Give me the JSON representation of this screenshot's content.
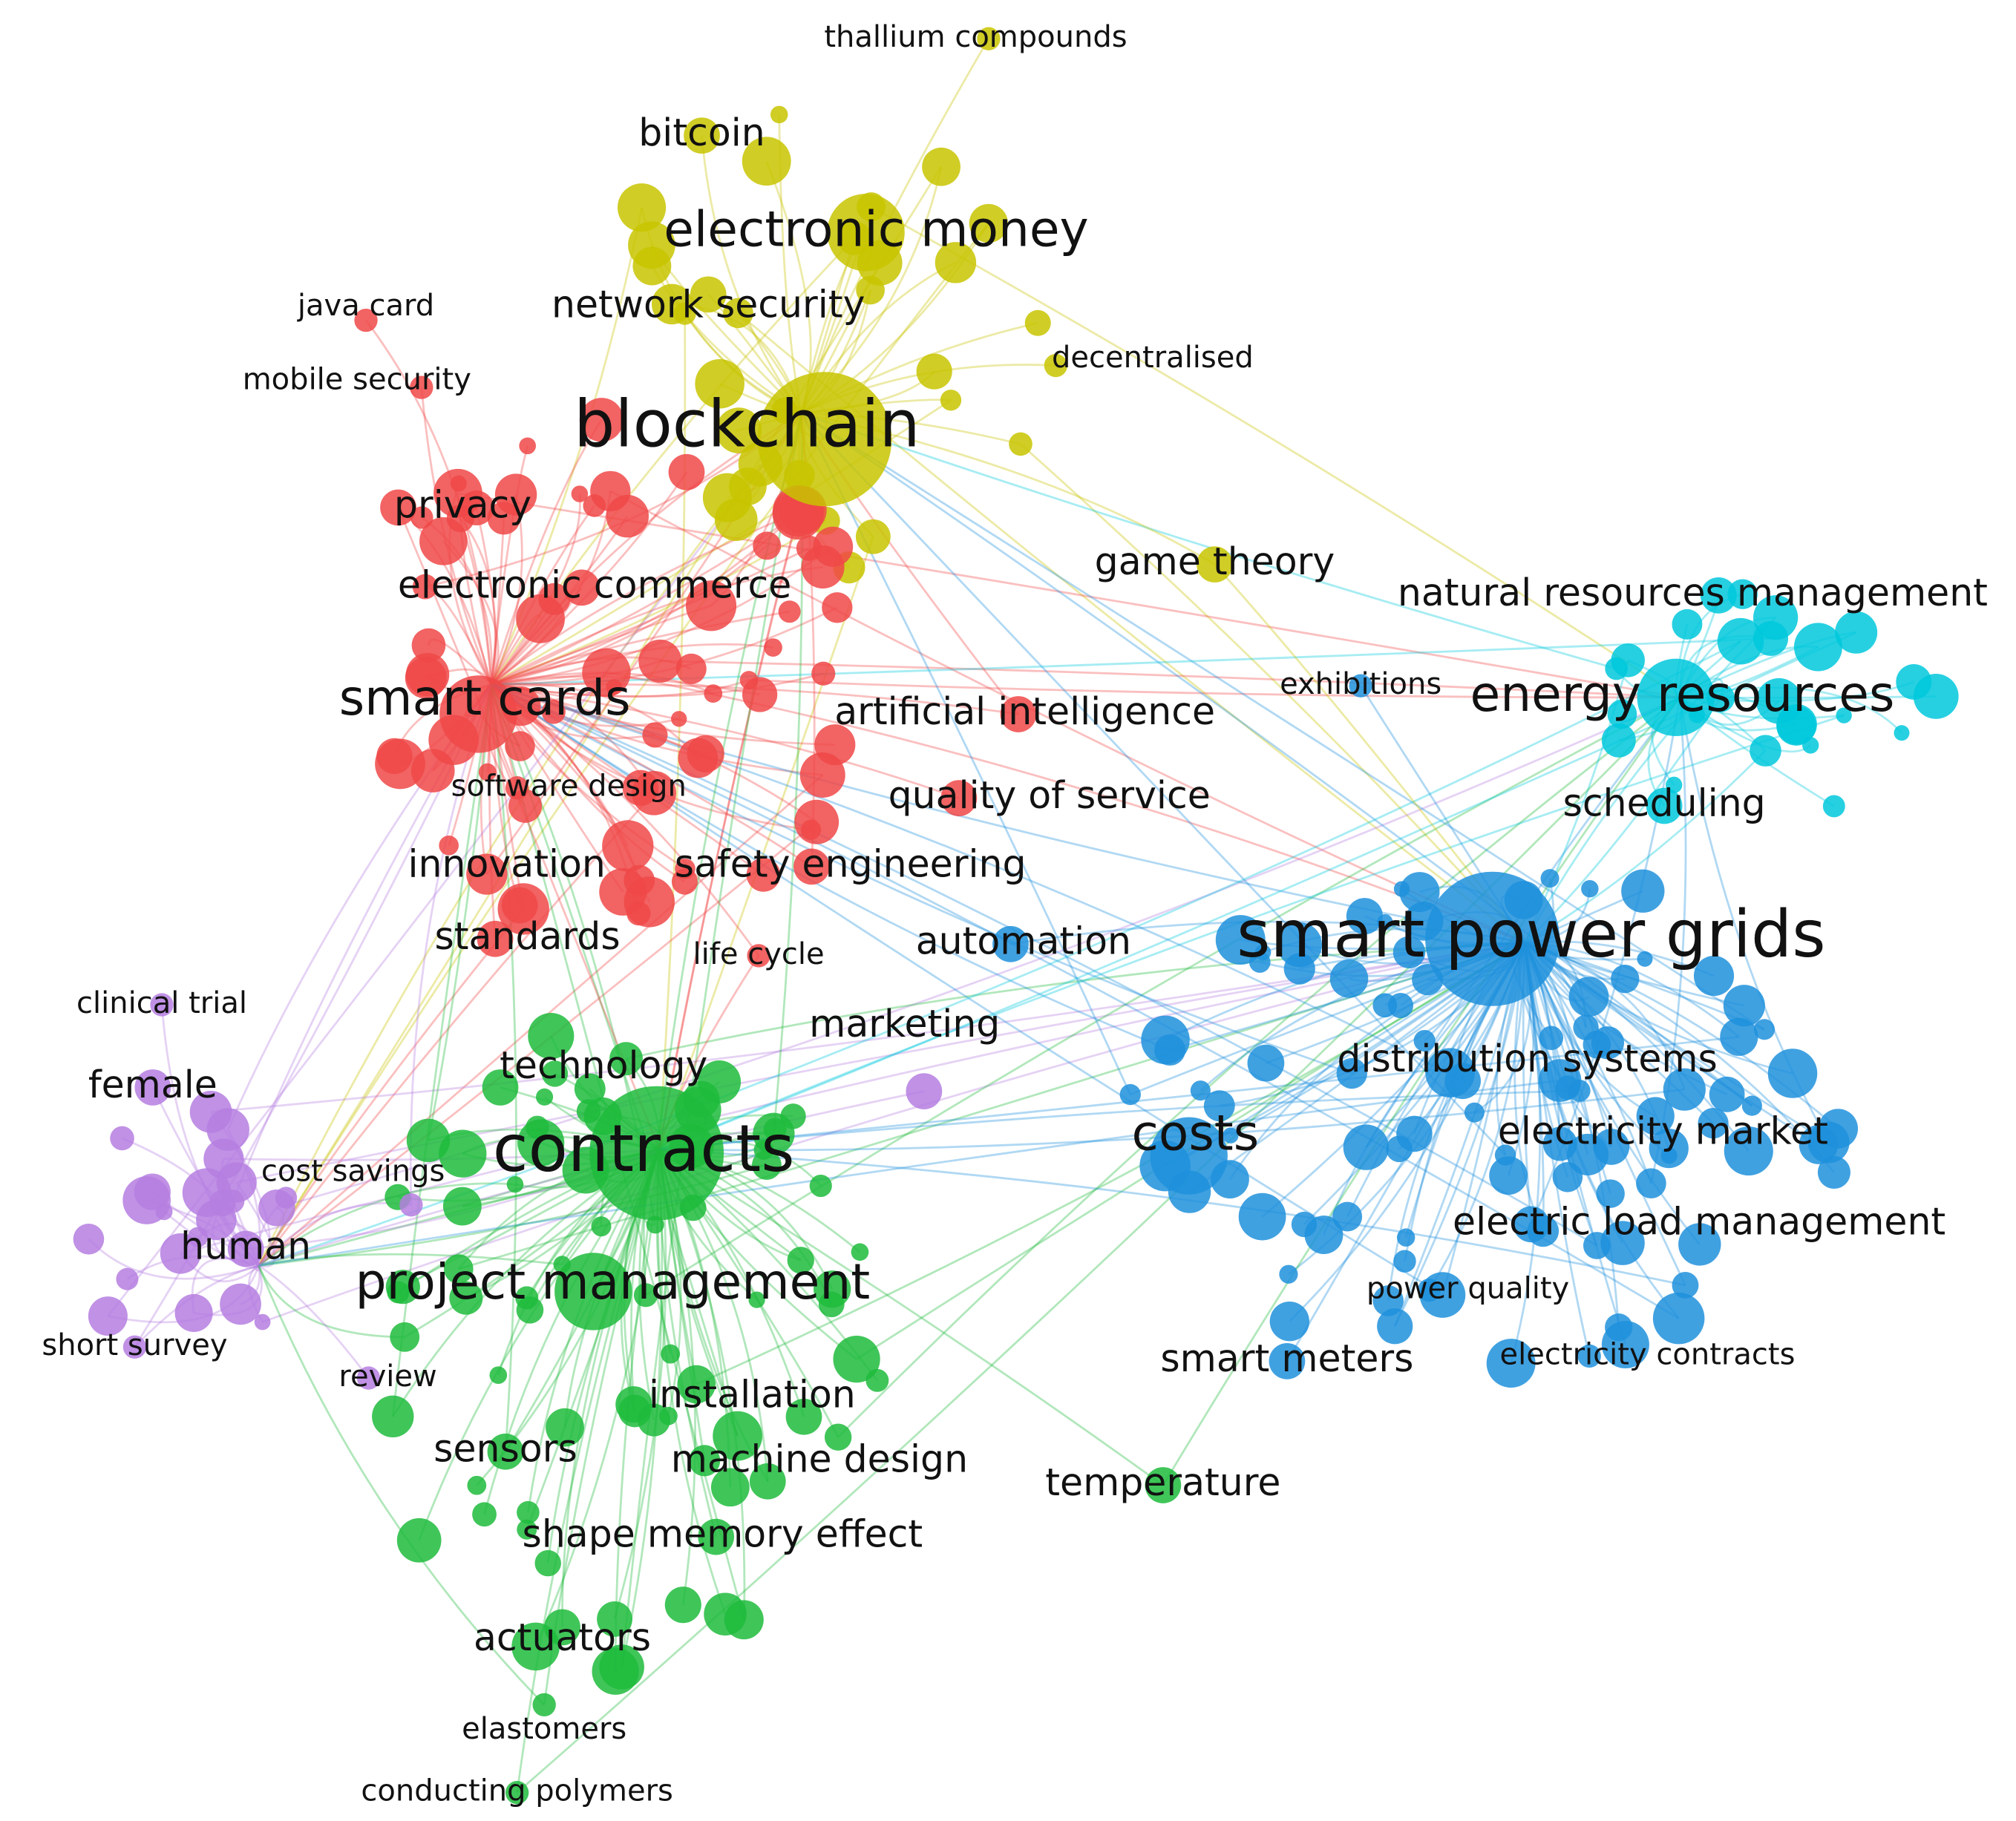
{
  "nodes": [
    {
      "label": "thallium compounds"
    },
    {
      "label": "bitcoin"
    },
    {
      "label": "electronic money"
    },
    {
      "label": "network security"
    },
    {
      "label": "decentralised"
    },
    {
      "label": "blockchain"
    },
    {
      "label": "game theory"
    },
    {
      "label": "java card"
    },
    {
      "label": "mobile security"
    },
    {
      "label": "privacy"
    },
    {
      "label": "electronic commerce"
    },
    {
      "label": "smart cards"
    },
    {
      "label": "artificial intelligence"
    },
    {
      "label": "software design"
    },
    {
      "label": "quality of service"
    },
    {
      "label": "innovation"
    },
    {
      "label": "safety engineering"
    },
    {
      "label": "standards"
    },
    {
      "label": "life cycle"
    },
    {
      "label": "clinical trial"
    },
    {
      "label": "female"
    },
    {
      "label": "cost savings"
    },
    {
      "label": "human"
    },
    {
      "label": "short survey"
    },
    {
      "label": "review"
    },
    {
      "label": "marketing"
    },
    {
      "label": "automation"
    },
    {
      "label": "technology"
    },
    {
      "label": "contracts"
    },
    {
      "label": "project management"
    },
    {
      "label": "installation"
    },
    {
      "label": "sensors"
    },
    {
      "label": "machine design"
    },
    {
      "label": "temperature"
    },
    {
      "label": "shape memory effect"
    },
    {
      "label": "actuators"
    },
    {
      "label": "elastomers"
    },
    {
      "label": "conducting polymers"
    },
    {
      "label": "smart power grids"
    },
    {
      "label": "exhibitions"
    },
    {
      "label": "distribution systems"
    },
    {
      "label": "costs"
    },
    {
      "label": "electricity market"
    },
    {
      "label": "electric load management"
    },
    {
      "label": "power quality"
    },
    {
      "label": "smart meters"
    },
    {
      "label": "electricity contracts"
    },
    {
      "label": "natural resources management"
    },
    {
      "label": "energy resources"
    },
    {
      "label": "scheduling"
    }
  ]
}
